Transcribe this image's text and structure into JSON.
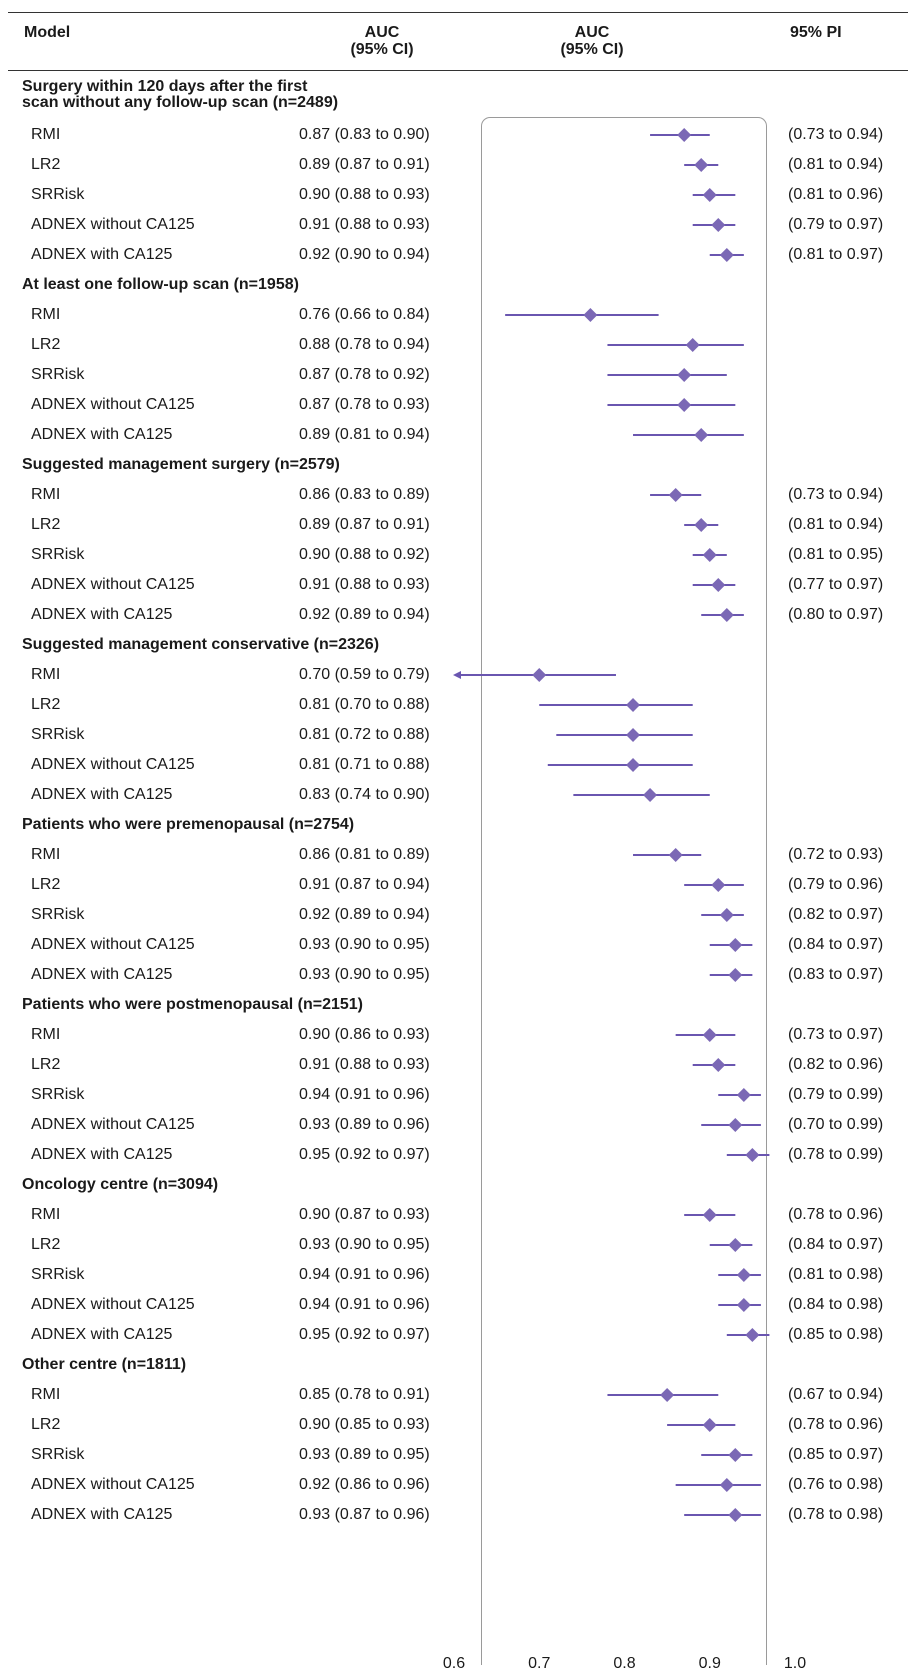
{
  "headers": {
    "model": "Model",
    "auc": "AUC\n(95% CI)",
    "auc2": "AUC\n(95% CI)",
    "pi": "95% PI"
  },
  "colors": {
    "marker": "#7b68b5",
    "line": "#6a56b0",
    "box": "#9a9a9a"
  },
  "chart_data": {
    "type": "forest",
    "xlim": [
      0.6,
      1.0
    ],
    "xticks": [
      "0.6",
      "0.7",
      "0.8",
      "0.9",
      "1.0"
    ],
    "groups": [
      {
        "title": "Surgery within 120 days after the first\nscan without any follow-up scan (n=2489)",
        "rows": [
          {
            "model": "RMI",
            "auc_text": "0.87 (0.83 to 0.90)",
            "pi": "(0.73 to 0.94)",
            "est": 0.87,
            "lo": 0.83,
            "hi": 0.9
          },
          {
            "model": "LR2",
            "auc_text": "0.89 (0.87 to 0.91)",
            "pi": "(0.81 to 0.94)",
            "est": 0.89,
            "lo": 0.87,
            "hi": 0.91
          },
          {
            "model": "SRRisk",
            "auc_text": "0.90 (0.88 to 0.93)",
            "pi": "(0.81 to 0.96)",
            "est": 0.9,
            "lo": 0.88,
            "hi": 0.93
          },
          {
            "model": "ADNEX without CA125",
            "auc_text": "0.91 (0.88 to 0.93)",
            "pi": "(0.79 to 0.97)",
            "est": 0.91,
            "lo": 0.88,
            "hi": 0.93
          },
          {
            "model": "ADNEX with CA125",
            "auc_text": "0.92 (0.90 to 0.94)",
            "pi": "(0.81 to 0.97)",
            "est": 0.92,
            "lo": 0.9,
            "hi": 0.94
          }
        ]
      },
      {
        "title": "At least one follow-up scan (n=1958)",
        "rows": [
          {
            "model": "RMI",
            "auc_text": "0.76 (0.66 to 0.84)",
            "pi": "",
            "est": 0.76,
            "lo": 0.66,
            "hi": 0.84
          },
          {
            "model": "LR2",
            "auc_text": "0.88 (0.78 to 0.94)",
            "pi": "",
            "est": 0.88,
            "lo": 0.78,
            "hi": 0.94
          },
          {
            "model": "SRRisk",
            "auc_text": "0.87 (0.78 to 0.92)",
            "pi": "",
            "est": 0.87,
            "lo": 0.78,
            "hi": 0.92
          },
          {
            "model": "ADNEX without CA125",
            "auc_text": "0.87 (0.78 to 0.93)",
            "pi": "",
            "est": 0.87,
            "lo": 0.78,
            "hi": 0.93
          },
          {
            "model": "ADNEX with CA125",
            "auc_text": "0.89 (0.81 to 0.94)",
            "pi": "",
            "est": 0.89,
            "lo": 0.81,
            "hi": 0.94
          }
        ]
      },
      {
        "title": "Suggested management surgery (n=2579)",
        "rows": [
          {
            "model": "RMI",
            "auc_text": "0.86 (0.83 to 0.89)",
            "pi": "(0.73 to 0.94)",
            "est": 0.86,
            "lo": 0.83,
            "hi": 0.89
          },
          {
            "model": "LR2",
            "auc_text": "0.89 (0.87 to 0.91)",
            "pi": "(0.81 to 0.94)",
            "est": 0.89,
            "lo": 0.87,
            "hi": 0.91
          },
          {
            "model": "SRRisk",
            "auc_text": "0.90 (0.88 to 0.92)",
            "pi": "(0.81 to 0.95)",
            "est": 0.9,
            "lo": 0.88,
            "hi": 0.92
          },
          {
            "model": "ADNEX without CA125",
            "auc_text": "0.91 (0.88 to 0.93)",
            "pi": "(0.77 to 0.97)",
            "est": 0.91,
            "lo": 0.88,
            "hi": 0.93
          },
          {
            "model": "ADNEX with CA125",
            "auc_text": "0.92 (0.89 to 0.94)",
            "pi": "(0.80 to 0.97)",
            "est": 0.92,
            "lo": 0.89,
            "hi": 0.94
          }
        ]
      },
      {
        "title": "Suggested management conservative (n=2326)",
        "rows": [
          {
            "model": "RMI",
            "auc_text": "0.70 (0.59 to 0.79)",
            "pi": "",
            "est": 0.7,
            "lo": 0.59,
            "hi": 0.79
          },
          {
            "model": "LR2",
            "auc_text": "0.81 (0.70 to 0.88)",
            "pi": "",
            "est": 0.81,
            "lo": 0.7,
            "hi": 0.88
          },
          {
            "model": "SRRisk",
            "auc_text": "0.81 (0.72 to 0.88)",
            "pi": "",
            "est": 0.81,
            "lo": 0.72,
            "hi": 0.88
          },
          {
            "model": "ADNEX without CA125",
            "auc_text": "0.81 (0.71 to 0.88)",
            "pi": "",
            "est": 0.81,
            "lo": 0.71,
            "hi": 0.88
          },
          {
            "model": "ADNEX with CA125",
            "auc_text": "0.83 (0.74 to 0.90)",
            "pi": "",
            "est": 0.83,
            "lo": 0.74,
            "hi": 0.9
          }
        ]
      },
      {
        "title": "Patients who were premenopausal (n=2754)",
        "rows": [
          {
            "model": "RMI",
            "auc_text": "0.86 (0.81 to 0.89)",
            "pi": "(0.72 to 0.93)",
            "est": 0.86,
            "lo": 0.81,
            "hi": 0.89
          },
          {
            "model": "LR2",
            "auc_text": "0.91 (0.87 to 0.94)",
            "pi": "(0.79 to 0.96)",
            "est": 0.91,
            "lo": 0.87,
            "hi": 0.94
          },
          {
            "model": "SRRisk",
            "auc_text": "0.92 (0.89 to 0.94)",
            "pi": "(0.82 to 0.97)",
            "est": 0.92,
            "lo": 0.89,
            "hi": 0.94
          },
          {
            "model": "ADNEX without CA125",
            "auc_text": "0.93 (0.90 to 0.95)",
            "pi": "(0.84 to 0.97)",
            "est": 0.93,
            "lo": 0.9,
            "hi": 0.95
          },
          {
            "model": "ADNEX with CA125",
            "auc_text": "0.93 (0.90 to 0.95)",
            "pi": "(0.83 to 0.97)",
            "est": 0.93,
            "lo": 0.9,
            "hi": 0.95
          }
        ]
      },
      {
        "title": "Patients who were postmenopausal (n=2151)",
        "rows": [
          {
            "model": "RMI",
            "auc_text": "0.90 (0.86 to 0.93)",
            "pi": "(0.73 to 0.97)",
            "est": 0.9,
            "lo": 0.86,
            "hi": 0.93
          },
          {
            "model": "LR2",
            "auc_text": "0.91 (0.88 to 0.93)",
            "pi": "(0.82 to 0.96)",
            "est": 0.91,
            "lo": 0.88,
            "hi": 0.93
          },
          {
            "model": "SRRisk",
            "auc_text": "0.94 (0.91 to 0.96)",
            "pi": "(0.79 to 0.99)",
            "est": 0.94,
            "lo": 0.91,
            "hi": 0.96
          },
          {
            "model": "ADNEX without CA125",
            "auc_text": "0.93 (0.89 to 0.96)",
            "pi": "(0.70 to 0.99)",
            "est": 0.93,
            "lo": 0.89,
            "hi": 0.96
          },
          {
            "model": "ADNEX with CA125",
            "auc_text": "0.95 (0.92 to 0.97)",
            "pi": "(0.78 to 0.99)",
            "est": 0.95,
            "lo": 0.92,
            "hi": 0.97
          }
        ]
      },
      {
        "title": "Oncology centre (n=3094)",
        "rows": [
          {
            "model": "RMI",
            "auc_text": "0.90 (0.87 to 0.93)",
            "pi": "(0.78 to 0.96)",
            "est": 0.9,
            "lo": 0.87,
            "hi": 0.93
          },
          {
            "model": "LR2",
            "auc_text": "0.93 (0.90 to 0.95)",
            "pi": "(0.84 to 0.97)",
            "est": 0.93,
            "lo": 0.9,
            "hi": 0.95
          },
          {
            "model": "SRRisk",
            "auc_text": "0.94 (0.91 to 0.96)",
            "pi": "(0.81 to 0.98)",
            "est": 0.94,
            "lo": 0.91,
            "hi": 0.96
          },
          {
            "model": "ADNEX without CA125",
            "auc_text": "0.94 (0.91 to 0.96)",
            "pi": "(0.84 to 0.98)",
            "est": 0.94,
            "lo": 0.91,
            "hi": 0.96
          },
          {
            "model": "ADNEX with CA125",
            "auc_text": "0.95 (0.92 to 0.97)",
            "pi": "(0.85 to 0.98)",
            "est": 0.95,
            "lo": 0.92,
            "hi": 0.97
          }
        ]
      },
      {
        "title": "Other centre (n=1811)",
        "rows": [
          {
            "model": "RMI",
            "auc_text": "0.85 (0.78 to 0.91)",
            "pi": "(0.67 to 0.94)",
            "est": 0.85,
            "lo": 0.78,
            "hi": 0.91
          },
          {
            "model": "LR2",
            "auc_text": "0.90 (0.85 to 0.93)",
            "pi": "(0.78 to 0.96)",
            "est": 0.9,
            "lo": 0.85,
            "hi": 0.93
          },
          {
            "model": "SRRisk",
            "auc_text": "0.93 (0.89 to 0.95)",
            "pi": "(0.85 to 0.97)",
            "est": 0.93,
            "lo": 0.89,
            "hi": 0.95
          },
          {
            "model": "ADNEX without CA125",
            "auc_text": "0.92 (0.86 to 0.96)",
            "pi": "(0.76 to 0.98)",
            "est": 0.92,
            "lo": 0.86,
            "hi": 0.96
          },
          {
            "model": "ADNEX with CA125",
            "auc_text": "0.93 (0.87 to 0.96)",
            "pi": "(0.78 to 0.98)",
            "est": 0.93,
            "lo": 0.87,
            "hi": 0.96
          }
        ]
      }
    ]
  }
}
